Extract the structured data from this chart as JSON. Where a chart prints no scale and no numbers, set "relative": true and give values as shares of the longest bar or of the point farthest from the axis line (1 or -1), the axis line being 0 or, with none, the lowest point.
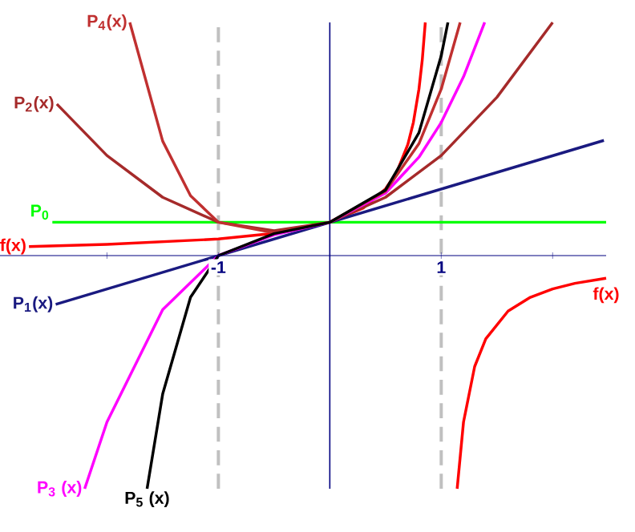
{
  "chart_data": {
    "type": "line",
    "relative": true,
    "xlim": [
      -2.96,
      2.48
    ],
    "xticks": [
      {
        "value": -2,
        "label": null
      },
      -1,
      1,
      {
        "value": 2,
        "label": null
      }
    ],
    "ref_lines": [
      {
        "axis": "x",
        "value": -1,
        "color": "#c0c0c0",
        "line_style": "dashed"
      },
      {
        "axis": "x",
        "value": 1,
        "color": "#c0c0c0",
        "line_style": "dashed"
      },
      {
        "axis": "x",
        "value": 0,
        "color": "#000080",
        "line_style": "solid"
      }
    ],
    "series": [
      {
        "name": "f(x)",
        "color": "#ff0000",
        "x": [
          -2.7,
          -2,
          -1,
          -0.5,
          0,
          0.3,
          0.5,
          0.6,
          0.7,
          0.75,
          0.8,
          0.83,
          0.857,
          1,
          1.143,
          1.2,
          1.3,
          1.4,
          1.6,
          1.8,
          2.0,
          2.2,
          2.48
        ],
        "values": [
          0.039,
          0.048,
          0.071,
          0.095,
          0.143,
          0.204,
          0.286,
          0.357,
          0.476,
          0.571,
          0.714,
          0.84,
          1.0,
          null,
          -1.0,
          -0.714,
          -0.476,
          -0.357,
          -0.238,
          -0.179,
          -0.143,
          -0.119,
          -0.097
        ]
      },
      {
        "name": "P$_{0}$",
        "color": "#00ff00",
        "x": [
          -2.49,
          2.48
        ],
        "values": [
          0.143,
          0.143
        ]
      },
      {
        "name": "P$_{1}$(x)",
        "color": "#1a1a80",
        "x": [
          -2.46,
          2.46
        ],
        "values": [
          -0.209,
          0.494
        ]
      },
      {
        "name": "P$_{2}$(x)",
        "color": "#a52a2a",
        "x": [
          -2.45,
          -2,
          -1.5,
          -1,
          -0.5,
          0,
          0.5,
          1,
          1.5,
          2
        ],
        "values": [
          0.65,
          0.429,
          0.25,
          0.143,
          0.107,
          0.143,
          0.25,
          0.429,
          0.679,
          1.0
        ]
      },
      {
        "name": "P$_{3}$ (x)",
        "color": "#ff00ff",
        "x": [
          -2.2,
          -2,
          -1.5,
          -1,
          -0.5,
          0,
          0.5,
          0.8,
          1,
          1.2,
          1.39
        ],
        "values": [
          -1.0,
          -0.714,
          -0.232,
          0,
          0.089,
          0.143,
          0.268,
          0.422,
          0.571,
          0.767,
          1.0
        ]
      },
      {
        "name": "P$_{4}$(x)",
        "color": "#c03030",
        "x": [
          -1.795,
          -1.5,
          -1.25,
          -1,
          -0.5,
          0,
          0.5,
          0.8,
          1,
          1.17
        ],
        "values": [
          1.0,
          0.491,
          0.257,
          0.143,
          0.098,
          0.143,
          0.277,
          0.48,
          0.714,
          1.0
        ]
      },
      {
        "name": "P$_{5}$ (x)",
        "color": "#000000",
        "x": [
          -1.64,
          -1.5,
          -1.25,
          -1,
          -0.5,
          0,
          0.5,
          0.8,
          1,
          1.06
        ],
        "values": [
          -1.0,
          -0.594,
          -0.179,
          0,
          0.094,
          0.143,
          0.281,
          0.527,
          0.857,
          1.0
        ]
      }
    ]
  }
}
